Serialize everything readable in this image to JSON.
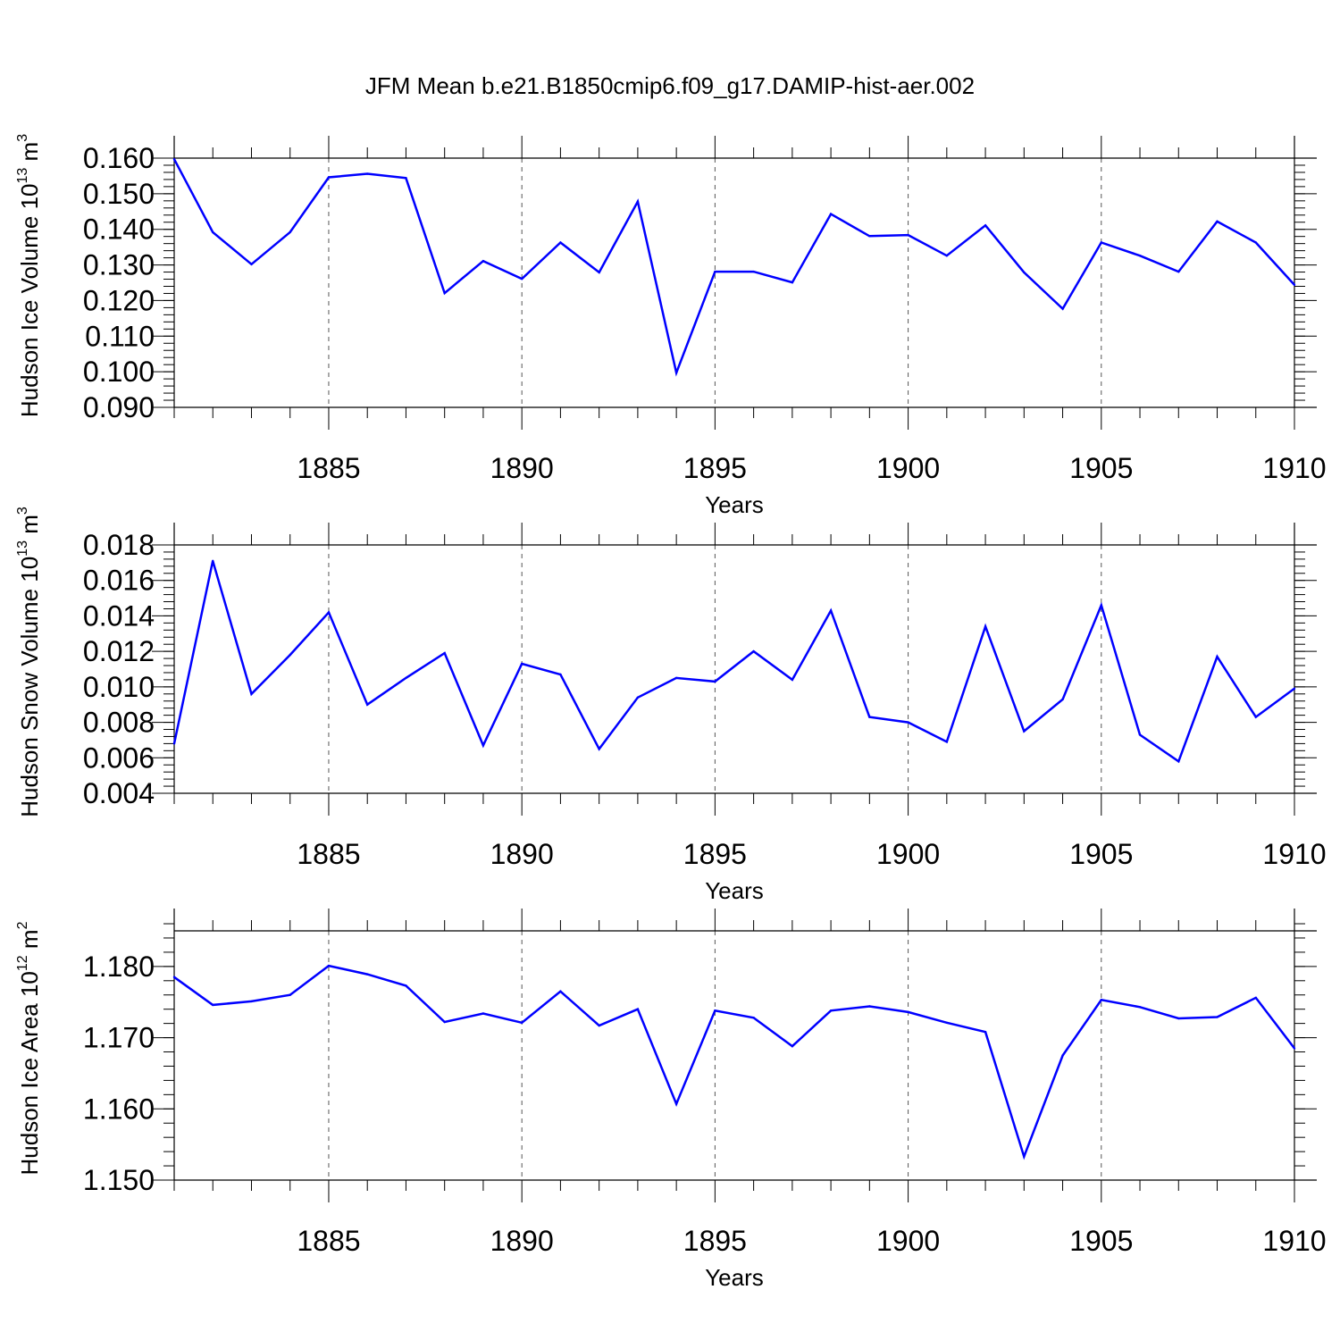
{
  "title": "JFM Mean b.e21.B1850cmip6.f09_g17.DAMIP-hist-aer.002",
  "colors": {
    "line": "#0000ff",
    "axis": "#000000",
    "grid": "#555555"
  },
  "chart_data": [
    {
      "type": "line",
      "name": "ice-volume",
      "ylabel": {
        "text": "Hudson Ice Volume 10",
        "exp": "13",
        "unit": " m",
        "unit_exp": "3"
      },
      "xlabel": "Years",
      "xlim": [
        1881,
        1910
      ],
      "ylim": [
        0.09,
        0.16
      ],
      "yticks": [
        0.09,
        0.1,
        0.11,
        0.12,
        0.13,
        0.14,
        0.15,
        0.16
      ],
      "ytick_labels": [
        "0.090",
        "0.100",
        "0.110",
        "0.120",
        "0.130",
        "0.140",
        "0.150",
        "0.160"
      ],
      "yminor_step": 0.002,
      "xticks": [
        1885,
        1890,
        1895,
        1900,
        1905,
        1910
      ],
      "xtick_labels": [
        "1885",
        "1890",
        "1895",
        "1900",
        "1905",
        "1910"
      ],
      "x": [
        1881,
        1882,
        1883,
        1884,
        1885,
        1886,
        1887,
        1888,
        1889,
        1890,
        1891,
        1892,
        1893,
        1894,
        1895,
        1896,
        1897,
        1898,
        1899,
        1900,
        1901,
        1902,
        1903,
        1904,
        1905,
        1906,
        1907,
        1908,
        1909,
        1910
      ],
      "values": [
        0.1597,
        0.1392,
        0.1302,
        0.1392,
        0.1546,
        0.1556,
        0.1544,
        0.1221,
        0.1311,
        0.1261,
        0.1363,
        0.1279,
        0.1478,
        0.0997,
        0.1281,
        0.1281,
        0.1251,
        0.1443,
        0.1381,
        0.1384,
        0.1326,
        0.1411,
        0.1279,
        0.1177,
        0.1363,
        0.1326,
        0.1281,
        0.1422,
        0.1363,
        0.1244
      ]
    },
    {
      "type": "line",
      "name": "snow-volume",
      "ylabel": {
        "text": "Hudson Snow Volume 10",
        "exp": "13",
        "unit": " m",
        "unit_exp": "3"
      },
      "xlabel": "Years",
      "xlim": [
        1881,
        1910
      ],
      "ylim": [
        0.004,
        0.018
      ],
      "yticks": [
        0.004,
        0.006,
        0.008,
        0.01,
        0.012,
        0.014,
        0.016,
        0.018
      ],
      "ytick_labels": [
        "0.004",
        "0.006",
        "0.008",
        "0.010",
        "0.012",
        "0.014",
        "0.016",
        "0.018"
      ],
      "yminor_step": 0.0004,
      "xticks": [
        1885,
        1890,
        1895,
        1900,
        1905,
        1910
      ],
      "xtick_labels": [
        "1885",
        "1890",
        "1895",
        "1900",
        "1905",
        "1910"
      ],
      "x": [
        1881,
        1882,
        1883,
        1884,
        1885,
        1886,
        1887,
        1888,
        1889,
        1890,
        1891,
        1892,
        1893,
        1894,
        1895,
        1896,
        1897,
        1898,
        1899,
        1900,
        1901,
        1902,
        1903,
        1904,
        1905,
        1906,
        1907,
        1908,
        1909,
        1910
      ],
      "values": [
        0.0068,
        0.0171,
        0.0096,
        0.0118,
        0.0142,
        0.009,
        0.0105,
        0.0119,
        0.0067,
        0.0113,
        0.0107,
        0.0065,
        0.0094,
        0.0105,
        0.0103,
        0.012,
        0.0104,
        0.0143,
        0.0083,
        0.008,
        0.0069,
        0.0134,
        0.0075,
        0.0093,
        0.0146,
        0.0073,
        0.0058,
        0.0117,
        0.0083,
        0.0099
      ]
    },
    {
      "type": "line",
      "name": "ice-area",
      "ylabel": {
        "text": "Hudson Ice Area 10",
        "exp": "12",
        "unit": " m",
        "unit_exp": "2"
      },
      "xlabel": "Years",
      "xlim": [
        1881,
        1910
      ],
      "ylim": [
        1.15,
        1.185
      ],
      "yticks": [
        1.15,
        1.16,
        1.17,
        1.18
      ],
      "ytick_labels": [
        "1.150",
        "1.160",
        "1.170",
        "1.180"
      ],
      "yminor_step": 0.002,
      "xticks": [
        1885,
        1890,
        1895,
        1900,
        1905,
        1910
      ],
      "xtick_labels": [
        "1885",
        "1890",
        "1895",
        "1900",
        "1905",
        "1910"
      ],
      "x": [
        1881,
        1882,
        1883,
        1884,
        1885,
        1886,
        1887,
        1888,
        1889,
        1890,
        1891,
        1892,
        1893,
        1894,
        1895,
        1896,
        1897,
        1898,
        1899,
        1900,
        1901,
        1902,
        1903,
        1904,
        1905,
        1906,
        1907,
        1908,
        1909,
        1910
      ],
      "values": [
        1.1785,
        1.1746,
        1.1751,
        1.176,
        1.1801,
        1.1789,
        1.1773,
        1.1722,
        1.1734,
        1.1721,
        1.1765,
        1.1717,
        1.174,
        1.1607,
        1.1738,
        1.1728,
        1.1688,
        1.1738,
        1.1744,
        1.1736,
        1.1721,
        1.1708,
        1.1533,
        1.1675,
        1.1753,
        1.1743,
        1.1727,
        1.1729,
        1.1756,
        1.1685
      ]
    }
  ]
}
